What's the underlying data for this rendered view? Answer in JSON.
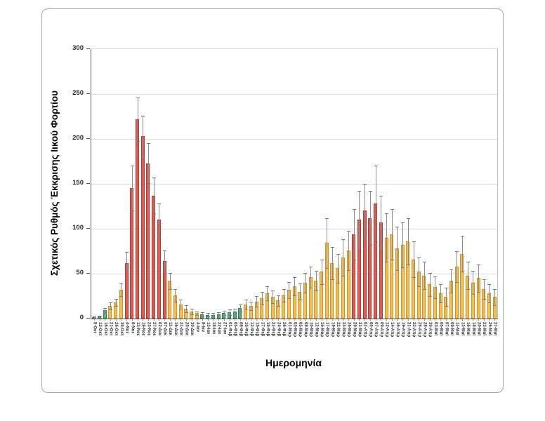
{
  "figure": {
    "y_axis_title": "Σχετικός Ρυθμός Έκκρισης Ιικού Φορτίου",
    "x_axis_title": "Ημερομηνία"
  },
  "chart_data": {
    "type": "bar",
    "title": "",
    "xlabel": "Ημερομηνία",
    "ylabel": "Σχετικός Ρυθμός Έκκρισης Ιικού Φορτίου",
    "ylim": [
      0,
      300
    ],
    "y_ticks": [
      0,
      50,
      100,
      150,
      200,
      250,
      300
    ],
    "grid": true,
    "legend_position": "none",
    "error_bars": true,
    "palette": {
      "green_fill": "#52b078",
      "green_border": "#2e8056",
      "yellow_fill": "#f6bc52",
      "yellow_border": "#d2921f",
      "red_fill": "#e05a50",
      "red_border": "#b13a33",
      "error_color": "#8c8c8c",
      "grid_color": "#d9d9d9",
      "axis_color": "#595959"
    },
    "categories": [
      "5-Οκτ",
      "12-Οκτ",
      "16-Οκτ",
      "21-Οκτ",
      "26-Οκτ",
      "30-Οκτ",
      "4-Νοε",
      "9-Νοε",
      "13-Νοε",
      "18-Νοε",
      "23-Νοε",
      "27-Νοε",
      "02-Δεκ",
      "07-Δεκ",
      "11-Δεκ",
      "16-Δεκ",
      "21-Δεκ",
      "25-Δεκ",
      "30-Δεκ",
      "4-Ιαν",
      "8-Ιαν",
      "13-Ιαν",
      "18-Ιαν",
      "22-Ιαν",
      "27-Ιαν",
      "01-Φεβ",
      "05-Φεβ",
      "08-Φεβ",
      "10-Φεβ",
      "12-Φεβ",
      "15-Φεβ",
      "17-Φεβ",
      "19-Φεβ",
      "22-Φεβ",
      "24-Φεβ",
      "26-Φεβ",
      "01-Μαρ",
      "03-Μαρ",
      "05-Μαρ",
      "08-Μαρ",
      "10-Μαρ",
      "12-Μαρ",
      "15-Μαρ",
      "17-Μαρ",
      "19-Μαρ",
      "22-Μαρ",
      "24-Μαρ",
      "26-Μαρ",
      "29-Μαρ",
      "31-Μαρ",
      "02-Απρ",
      "05-Απρ",
      "07-Απρ",
      "09-Απρ",
      "12-Απρ",
      "14-Απρ",
      "16-Απρ",
      "19-Απρ",
      "21-Απρ",
      "23-Απρ",
      "26-Απρ",
      "28-Απρ",
      "30-Απρ",
      "03-Μαϊ",
      "05-Μαϊ",
      "07-Μαϊ",
      "09-Μαϊ",
      "11-Μαϊ",
      "13-Μαϊ",
      "16-Μαϊ",
      "18-Μαϊ",
      "20-Μαϊ",
      "23-Μαϊ",
      "25-Μαϊ",
      "27-Μαϊ"
    ],
    "values": [
      1.5,
      2,
      9,
      14,
      18,
      32,
      62,
      145,
      222,
      203,
      173,
      137,
      110,
      64,
      42,
      26,
      16,
      11,
      8,
      6,
      5,
      4,
      4,
      5,
      6,
      7,
      8,
      12,
      16,
      14,
      19,
      23,
      28,
      24,
      20,
      26,
      32,
      36,
      30,
      40,
      46,
      42,
      52,
      84,
      62,
      56,
      68,
      76,
      94,
      110,
      120,
      112,
      128,
      107,
      90,
      94,
      78,
      82,
      86,
      66,
      52,
      48,
      38,
      35,
      28,
      24,
      42,
      58,
      72,
      48,
      40,
      45,
      33,
      28,
      24
    ],
    "errors": [
      1,
      1,
      3,
      4,
      4,
      7,
      12,
      25,
      24,
      23,
      22,
      20,
      18,
      12,
      9,
      7,
      5,
      4,
      3,
      2,
      2,
      2,
      2,
      2,
      2,
      3,
      3,
      4,
      5,
      5,
      6,
      7,
      8,
      7,
      6,
      7,
      9,
      10,
      9,
      11,
      12,
      11,
      14,
      28,
      18,
      16,
      20,
      22,
      28,
      32,
      30,
      30,
      42,
      30,
      27,
      28,
      24,
      25,
      26,
      20,
      16,
      15,
      13,
      12,
      10,
      10,
      13,
      17,
      20,
      15,
      13,
      15,
      11,
      10,
      9
    ],
    "bar_colors": [
      "green",
      "green",
      "green",
      "yellow",
      "yellow",
      "yellow",
      "red",
      "red",
      "red",
      "red",
      "red",
      "red",
      "red",
      "red",
      "yellow",
      "yellow",
      "yellow",
      "yellow",
      "yellow",
      "yellow",
      "green",
      "green",
      "green",
      "green",
      "green",
      "green",
      "green",
      "green",
      "yellow",
      "yellow",
      "yellow",
      "yellow",
      "yellow",
      "yellow",
      "yellow",
      "yellow",
      "yellow",
      "yellow",
      "yellow",
      "yellow",
      "yellow",
      "yellow",
      "yellow",
      "yellow",
      "yellow",
      "yellow",
      "yellow",
      "yellow",
      "red",
      "red",
      "red",
      "red",
      "red",
      "red",
      "yellow",
      "yellow",
      "yellow",
      "yellow",
      "yellow",
      "yellow",
      "yellow",
      "yellow",
      "yellow",
      "yellow",
      "yellow",
      "yellow",
      "yellow",
      "yellow",
      "yellow",
      "yellow",
      "yellow",
      "yellow",
      "yellow",
      "yellow",
      "yellow"
    ]
  }
}
